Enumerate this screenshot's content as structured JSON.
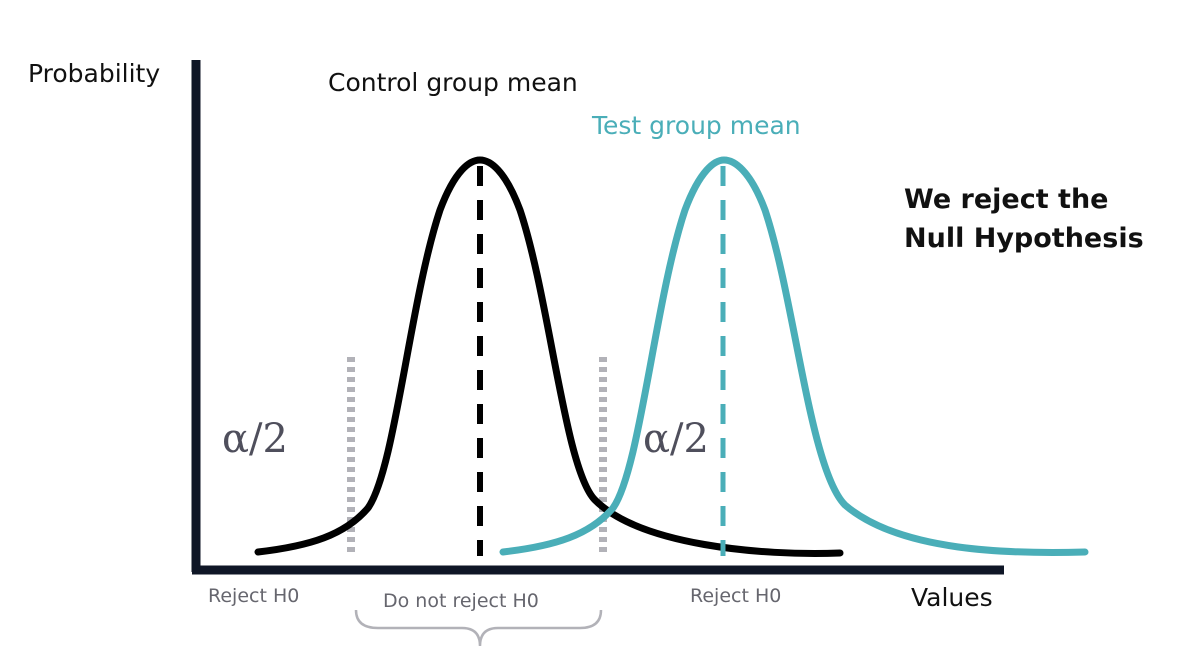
{
  "labels": {
    "y_axis": "Probability",
    "x_axis": "Values",
    "control_mean": "Control group mean",
    "test_mean": "Test group mean",
    "conclusion_line1": "We reject the",
    "conclusion_line2": "Null Hypothesis",
    "alpha_left": "α/2",
    "alpha_right": "α/2",
    "reject_left": "Reject H0",
    "do_not_reject": "Do not reject H0",
    "reject_right": "Reject H0"
  },
  "colors": {
    "axis": "#0f1626",
    "control_curve": "#000000",
    "test_curve": "#4aaeb8",
    "threshold": "#b2b2b8",
    "region_label": "#66666e",
    "alpha": "#4f4f5c",
    "text": "#111111"
  }
}
